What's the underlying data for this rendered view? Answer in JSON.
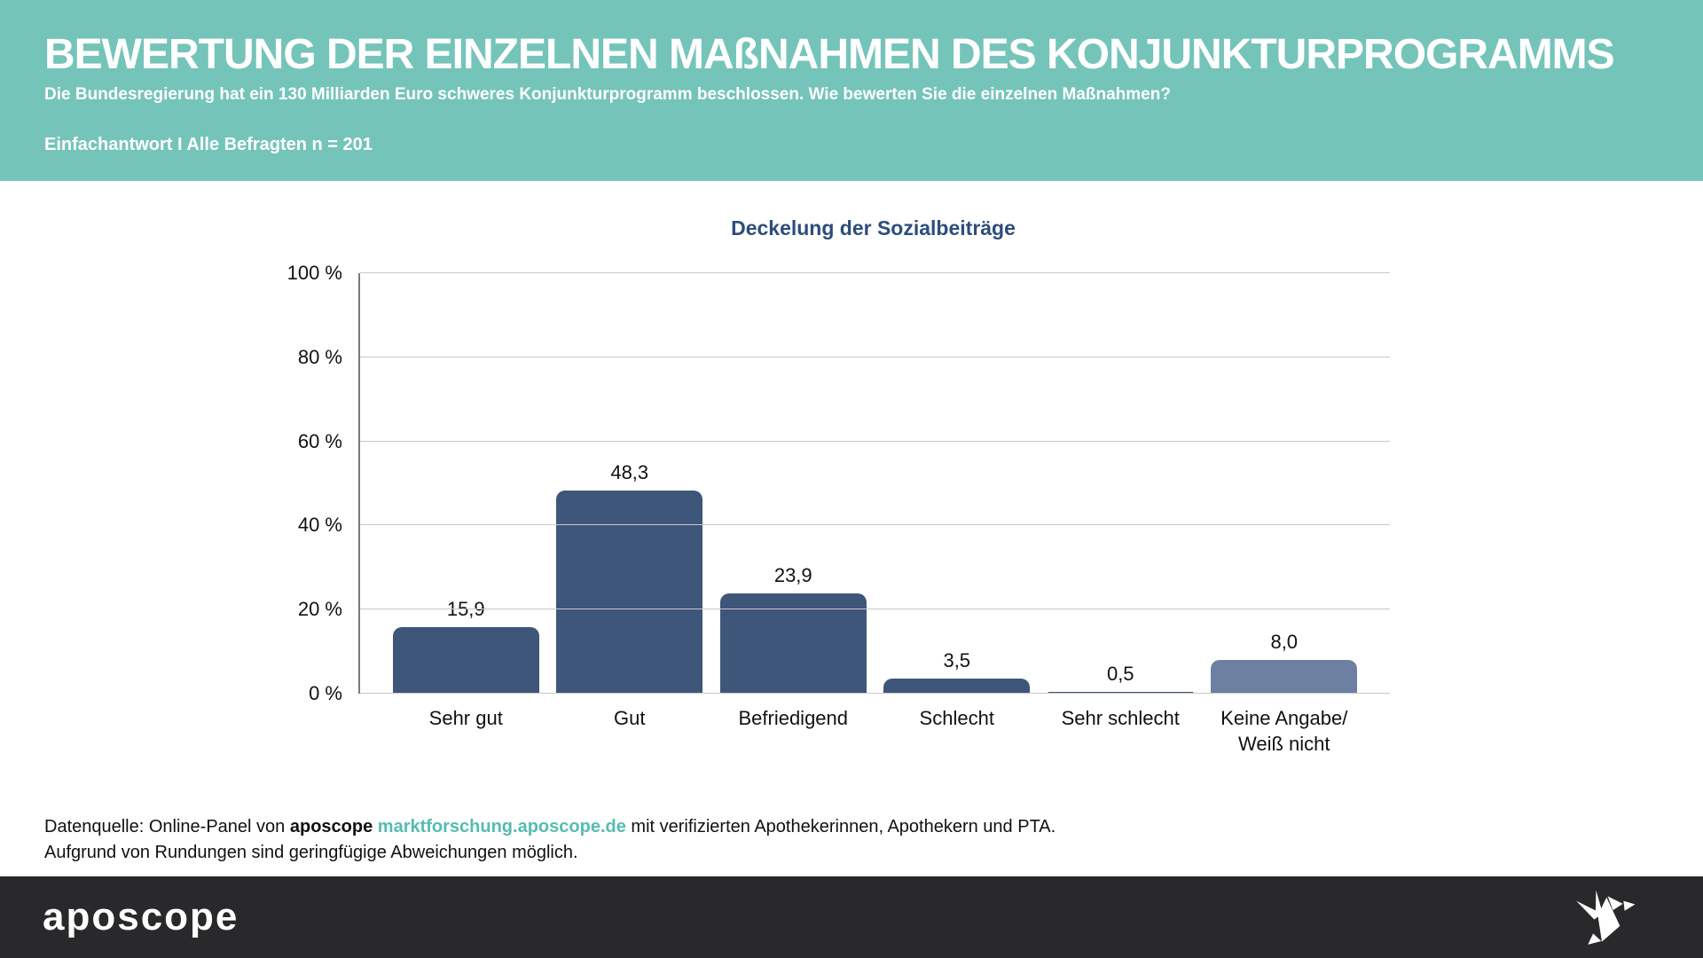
{
  "header": {
    "title": "BEWERTUNG DER EINZELNEN MAßNAHMEN DES KONJUNKTURPROGRAMMS",
    "subtitle": "Die Bundesregierung hat ein 130 Milliarden Euro schweres Konjunkturprogramm beschlossen. Wie bewerten Sie die einzelnen Maßnahmen?",
    "sample_note": "Einfachantwort I Alle Befragten n = 201"
  },
  "chart_data": {
    "type": "bar",
    "title": "Deckelung der Sozialbeiträge",
    "categories": [
      "Sehr gut",
      "Gut",
      "Befriedigend",
      "Schlecht",
      "Sehr schlecht",
      "Keine Angabe/\nWeiß nicht"
    ],
    "values": [
      15.9,
      48.3,
      23.9,
      3.5,
      0.5,
      8.0
    ],
    "value_labels": [
      "15,9",
      "48,3",
      "23,9",
      "3,5",
      "0,5",
      "8,0"
    ],
    "unit": "%",
    "ylim": [
      0,
      100
    ],
    "yticks": [
      0,
      20,
      40,
      60,
      80,
      100
    ],
    "ytick_labels": [
      "0 %",
      "20 %",
      "40 %",
      "60 %",
      "80 %",
      "100 %"
    ],
    "grid": true,
    "legend": false,
    "bar_colors": [
      "#3e5679",
      "#3e5679",
      "#3e5679",
      "#3e5679",
      "#3e5679",
      "#6d80a2"
    ]
  },
  "source": {
    "prefix": "Datenquelle: Online-Panel von",
    "brand": "aposcope",
    "link": "marktforschung.aposcope.de",
    "suffix": "mit verifizierten Apothekerinnen, Apothekern und PTA.",
    "line2": "Aufgrund von Rundungen sind geringfügige Abweichungen möglich."
  },
  "footer": {
    "logo_text": "aposcope"
  },
  "colors": {
    "header_bg": "#75c4ba",
    "chart_title": "#2d4d7c",
    "bar_primary": "#3e5679",
    "bar_muted": "#6d80a2",
    "link_teal": "#55bcb2",
    "footer_bg": "#29292c",
    "gridline": "#c9c9c9"
  }
}
